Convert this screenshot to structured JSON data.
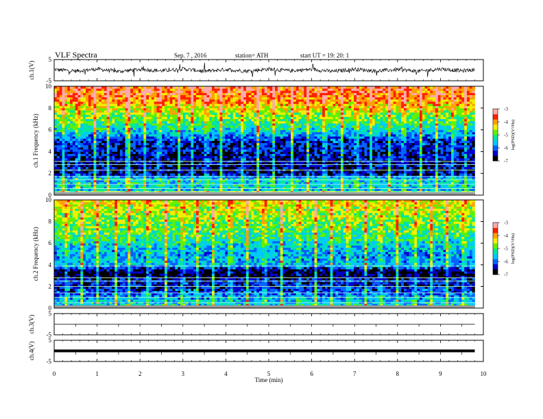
{
  "header": {
    "title": "VLF  Spectra",
    "date": "Sep. 7  , 2016",
    "station": "station= ATH",
    "start": "start  UT  =    19: 20: 1"
  },
  "colors": {
    "spectrum": [
      "#000000",
      "#0000c8",
      "#0064ff",
      "#00c8ff",
      "#00e6a0",
      "#64f000",
      "#f0f000",
      "#ffa000",
      "#ff2000",
      "#ffaaaa"
    ],
    "trace": "#000000",
    "line": "#000000"
  },
  "chart_data": [
    {
      "type": "line",
      "panel": "ch1-waveform",
      "ylabel": "ch.1(V)",
      "yticklabels": [
        "5",
        "-5"
      ],
      "ylim": [
        -5,
        5
      ],
      "x": [
        0,
        0.5,
        1,
        1.5,
        2,
        2.5,
        3,
        3.5,
        4,
        4.5,
        5,
        5.5,
        6,
        6.5,
        7,
        7.5,
        8,
        8.5,
        9,
        9.5,
        9.8
      ],
      "values": [
        0.3,
        -0.4,
        0.5,
        -0.6,
        0.4,
        -0.3,
        0.6,
        -0.5,
        0.3,
        -0.4,
        0.5,
        -0.3,
        0.4,
        -0.6,
        0.5,
        -0.4,
        0.3,
        -0.5,
        0.6,
        -0.3,
        0.2
      ],
      "xlim": [
        0,
        10
      ]
    },
    {
      "type": "heatmap",
      "panel": "ch1-spectrogram",
      "ylabel": "ch.1 Frequency  (kHz)",
      "yticks": [
        0,
        2,
        4,
        6,
        8,
        10
      ],
      "ylim": [
        0,
        10
      ],
      "xlim": [
        0,
        10
      ],
      "data_end_min": 9.8,
      "colorbar": {
        "label": "log(PSD)(V²/Hz)",
        "ticks": [
          "-3",
          "-4",
          "-5",
          "-6",
          "-7"
        ],
        "range": [
          -7,
          -3
        ]
      },
      "profile_khz": [
        0,
        0.5,
        1,
        1.5,
        2,
        3,
        4,
        5,
        6,
        7,
        8,
        9,
        10
      ],
      "profile_logpsd": [
        -3.4,
        -5.6,
        -5.4,
        -5.5,
        -6.6,
        -6.6,
        -6.4,
        -6.3,
        -5.4,
        -4.9,
        -4.4,
        -3.8,
        -3.7
      ],
      "harmonic_lines_khz": [
        0.3,
        0.6,
        1.0,
        1.4,
        1.7,
        2.3,
        2.8,
        3.1
      ],
      "impulse_times_min": [
        0.2,
        0.55,
        0.95,
        1.25,
        1.7,
        1.75,
        2.1,
        2.45,
        2.9,
        3.2,
        3.55,
        3.9,
        4.4,
        4.75,
        5.1,
        5.55,
        5.9,
        6.3,
        6.7,
        7.05,
        7.4,
        7.8,
        8.15,
        8.55,
        8.9,
        9.3,
        9.6
      ]
    },
    {
      "type": "heatmap",
      "panel": "ch2-spectrogram",
      "ylabel": "ch.2 Frequency  (kHz)",
      "yticks": [
        0,
        2,
        4,
        6,
        8,
        10
      ],
      "ylim": [
        0,
        10
      ],
      "xlim": [
        0,
        10
      ],
      "data_end_min": 9.8,
      "colorbar": {
        "label": "log(PSD)(V²/Hz)",
        "ticks": [
          "-3",
          "-4",
          "-5",
          "-6",
          "-7"
        ],
        "range": [
          -7,
          -3
        ]
      },
      "profile_khz": [
        0,
        0.5,
        1,
        1.5,
        2,
        2.5,
        3,
        3.5,
        4,
        5,
        6,
        7,
        8,
        9,
        10
      ],
      "profile_logpsd": [
        -5.4,
        -5.5,
        -5.8,
        -6.2,
        -6.4,
        -6.3,
        -6.9,
        -6.7,
        -5.6,
        -5.8,
        -5.4,
        -5.0,
        -4.8,
        -4.6,
        -4.4
      ],
      "harmonic_lines_khz": [
        0.5,
        1.0,
        1.4,
        2.0,
        2.5,
        2.8,
        3.9
      ],
      "impulse_times_min": [
        0.3,
        0.65,
        1.0,
        1.45,
        1.75,
        2.2,
        2.6,
        3.0,
        3.35,
        3.7,
        4.1,
        4.5,
        4.9,
        5.3,
        5.7,
        6.1,
        6.45,
        6.85,
        7.25,
        7.6,
        8.0,
        8.4,
        8.8,
        9.15,
        9.55
      ]
    },
    {
      "type": "line",
      "panel": "ch3-waveform",
      "ylabel": "ch.3(V)",
      "yticklabels": [
        "5",
        "-5"
      ],
      "ylim": [
        -5,
        5
      ],
      "x": [
        0,
        9.8
      ],
      "values": [
        0,
        0
      ],
      "xlim": [
        0,
        10
      ]
    },
    {
      "type": "line",
      "panel": "ch4-waveform",
      "ylabel": "ch.4(V)",
      "yticklabels": [
        "5",
        "-5"
      ],
      "ylim": [
        -5,
        5
      ],
      "x": [
        0,
        9.8
      ],
      "values": [
        0,
        0
      ],
      "xlim": [
        0,
        10
      ],
      "xlabel": "Time  (min)",
      "xticks": [
        0,
        1,
        2,
        3,
        4,
        5,
        6,
        7,
        8,
        9,
        10
      ]
    }
  ]
}
